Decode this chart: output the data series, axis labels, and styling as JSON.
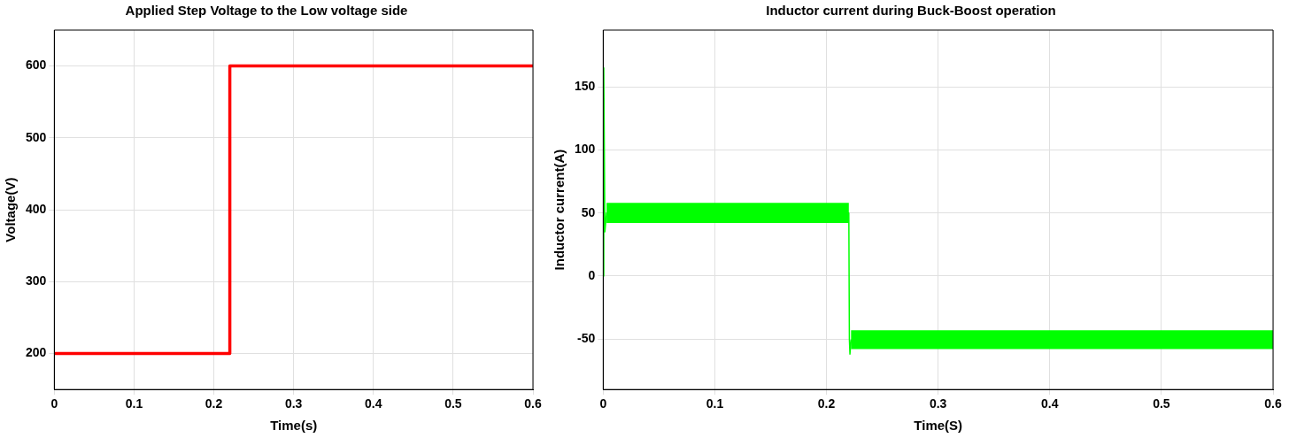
{
  "chart_data": [
    {
      "type": "line",
      "title": "Applied Step Voltage to the Low voltage side",
      "xlabel": "Time(s)",
      "ylabel": "Voltage(V)",
      "xlim": [
        0,
        0.6
      ],
      "xticks": [
        0,
        0.1,
        0.2,
        0.3,
        0.4,
        0.5,
        0.6
      ],
      "ylim": [
        150,
        650
      ],
      "yticks": [
        200,
        300,
        400,
        500,
        600
      ],
      "grid": true,
      "series": [
        {
          "type": "step",
          "color": "#ff0000",
          "x": [
            0,
            0.22,
            0.6
          ],
          "values": [
            200,
            600,
            600
          ]
        }
      ]
    },
    {
      "type": "line",
      "title": "Inductor current during Buck-Boost operation",
      "xlabel": "Time(S)",
      "ylabel": "Inductor current(A)",
      "xlim": [
        0,
        0.6
      ],
      "xticks": [
        0,
        0.1,
        0.2,
        0.3,
        0.4,
        0.5,
        0.6
      ],
      "ylim": [
        -90,
        195
      ],
      "yticks": [
        -50,
        0,
        50,
        100,
        150
      ],
      "grid": true,
      "series": [
        {
          "color": "#00ff00",
          "x": [
            0,
            0.0005,
            0.0015,
            0.003,
            0.22,
            0.2205,
            0.221,
            0.222,
            0.6
          ],
          "values": [
            0,
            165,
            35,
            50,
            50,
            -50,
            -62,
            -51,
            -51
          ],
          "lower": [
            null,
            null,
            null,
            42,
            42,
            null,
            null,
            -58,
            -58
          ],
          "upper": [
            null,
            null,
            null,
            58,
            58,
            null,
            null,
            -43,
            -43
          ]
        }
      ]
    }
  ]
}
